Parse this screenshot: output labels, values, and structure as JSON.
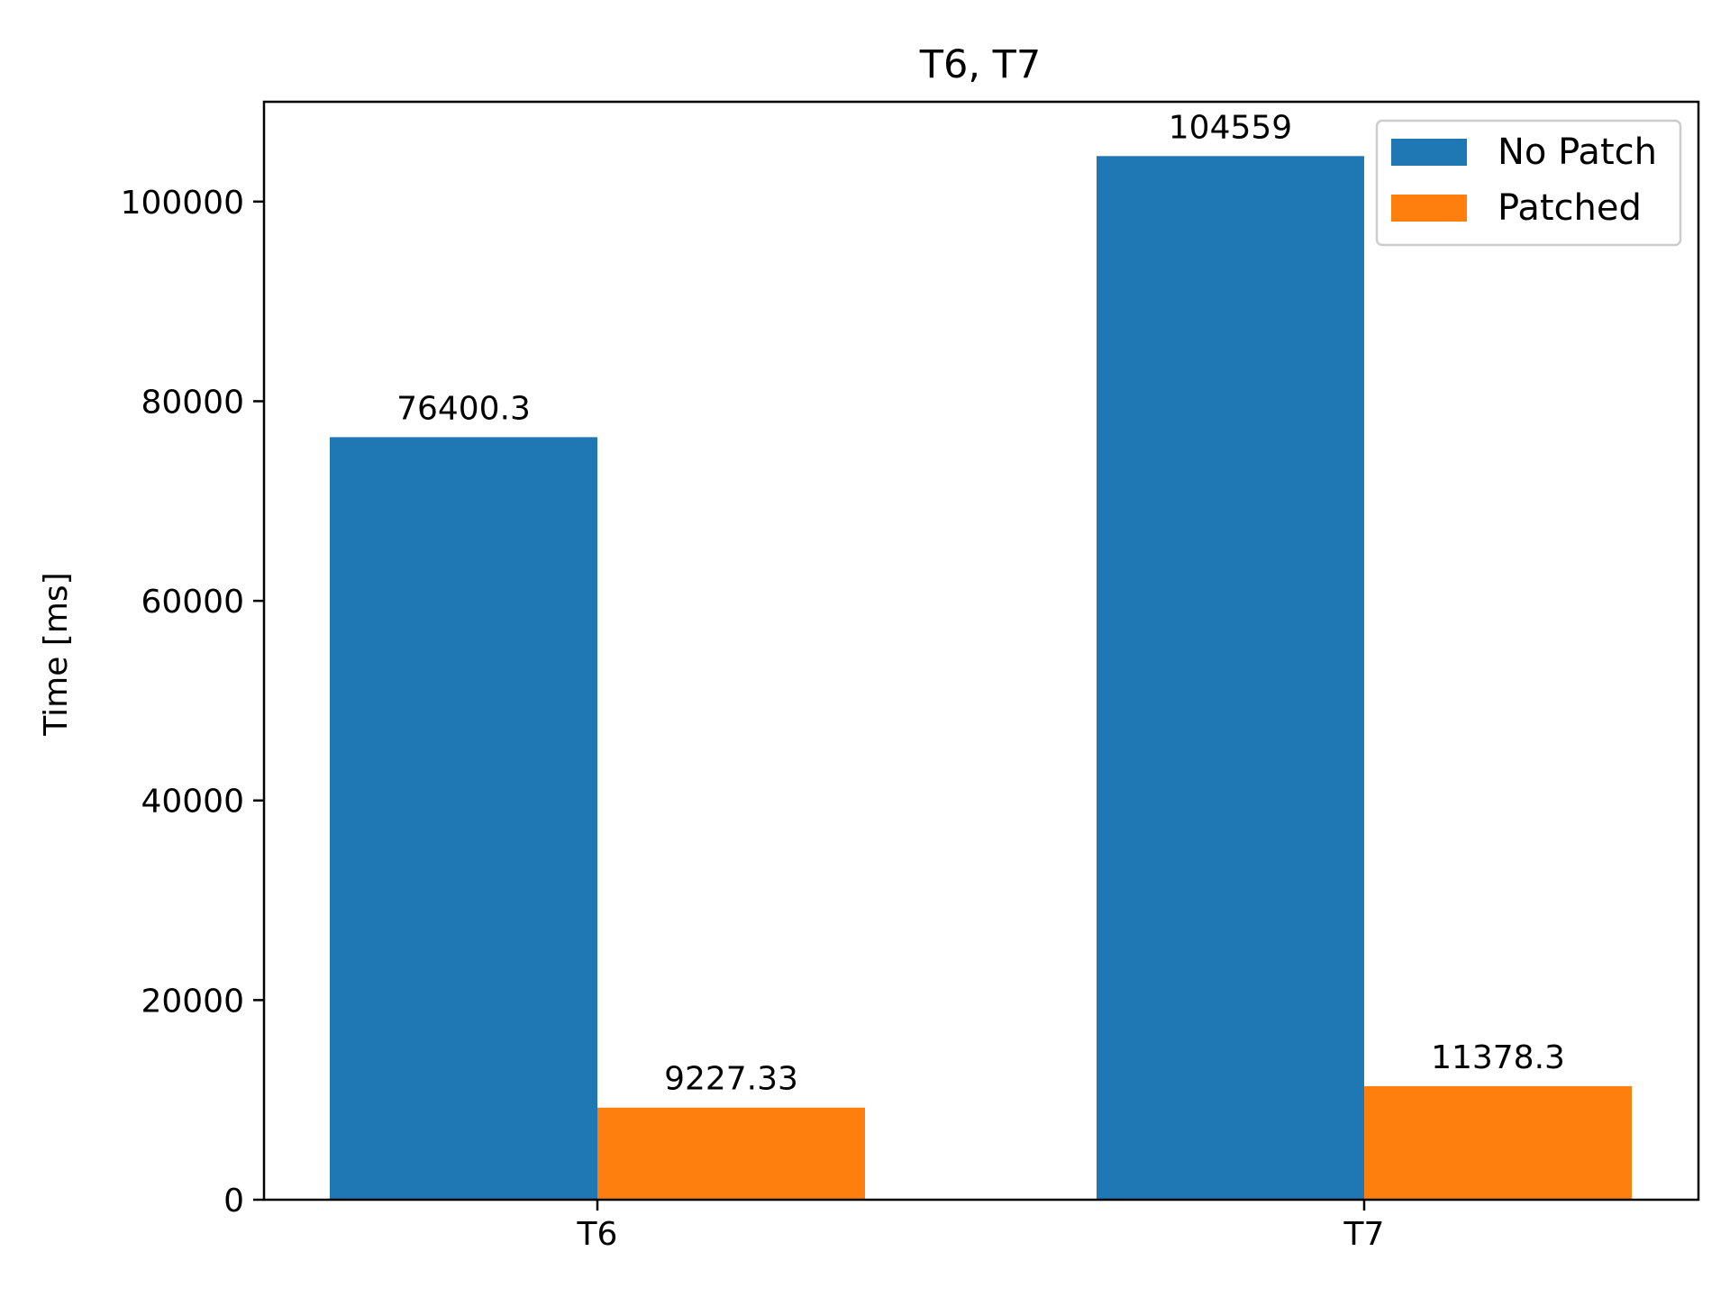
{
  "chart_data": {
    "type": "bar",
    "title": "T6, T7",
    "xlabel": "",
    "ylabel": "Time [ms]",
    "categories": [
      "T6",
      "T7"
    ],
    "series": [
      {
        "name": "No Patch",
        "values": [
          76400.3,
          104559
        ],
        "labels": [
          "76400.3",
          "104559"
        ],
        "color": "#1f77b4"
      },
      {
        "name": "Patched",
        "values": [
          9227.33,
          11378.3
        ],
        "labels": [
          "9227.33",
          "11378.3"
        ],
        "color": "#ff7f0e"
      }
    ],
    "ylim": [
      0,
      110000
    ],
    "yticks": [
      0,
      20000,
      40000,
      60000,
      80000,
      100000
    ],
    "ytick_labels": [
      "0",
      "20000",
      "40000",
      "60000",
      "80000",
      "100000"
    ],
    "grid": false,
    "legend_position": "top-right"
  }
}
